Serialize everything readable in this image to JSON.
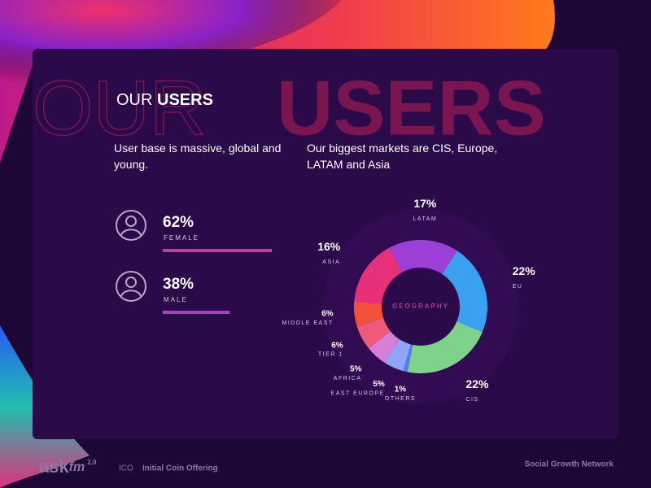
{
  "header": {
    "title_light": "OUR",
    "title_bold": "USERS",
    "background_word_1": "OUR",
    "background_word_2": "USERS"
  },
  "left_text": "User base is massive, global and young.",
  "right_text": "Our biggest markets are CIS, Europe, LATAM and Asia",
  "chart_data": [
    {
      "type": "bar",
      "orientation": "horizontal",
      "categories": [
        "FEMALE",
        "MALE"
      ],
      "values": [
        62,
        38
      ],
      "value_labels": [
        "62%",
        "38%"
      ],
      "series_colors": [
        "#d6359b",
        "#b23ac2"
      ]
    },
    {
      "type": "donut",
      "center_label": "GEOGRAPHY",
      "categories": [
        "LATAM",
        "EU",
        "CIS",
        "OTHERS",
        "EAST EUROPE",
        "AFRICA",
        "TIER 1",
        "MIDDLE EAST",
        "ASIA"
      ],
      "values": [
        17,
        22,
        22,
        1,
        5,
        5,
        6,
        6,
        16
      ],
      "value_labels": [
        "17%",
        "22%",
        "22%",
        "1%",
        "5%",
        "5%",
        "6%",
        "6%",
        "16%"
      ],
      "colors": [
        "#9b3fd6",
        "#3aa0f0",
        "#7fd28a",
        "#5a7cf0",
        "#8fa6f5",
        "#d77fd8",
        "#f05a7a",
        "#f2503a",
        "#e8307a"
      ]
    }
  ],
  "footer": {
    "logo_1": "ask",
    "logo_2": "fm",
    "logo_version": "2.0",
    "ico": "ICO",
    "ico_text": "Initial Coin Offering",
    "tagline": "Social Growth Network"
  }
}
